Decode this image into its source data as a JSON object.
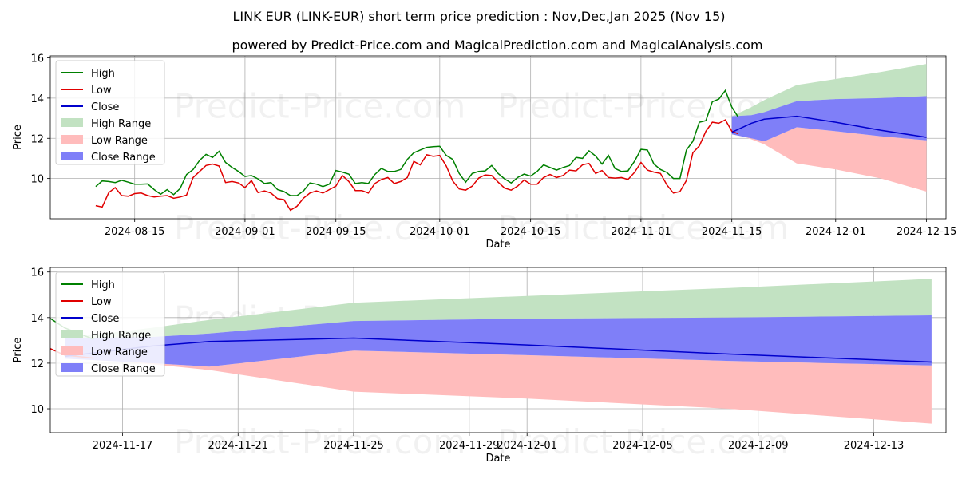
{
  "chart_data": {
    "type": "line",
    "title": "LINK EUR (LINK-EUR) short term price prediction : Nov,Dec,Jan 2025 (Nov 15)",
    "subtitle": "powered by Predict-Price.com and MagicalPrediction.com and MagicalAnalysis.com",
    "watermark": "Predict-Price.com",
    "colors": {
      "high": "#008000",
      "low": "#e00000",
      "close": "#0000cc",
      "high_range": "#c2e2c2",
      "low_range": "#ffbcbc",
      "close_range": "#7f7ff8",
      "grid": "#b0b0b0"
    },
    "legend": [
      "High",
      "Low",
      "Close",
      "High Range",
      "Low Range",
      "Close Range"
    ],
    "history": {
      "start_date": "2024-08-09",
      "high": [
        9.6,
        9.88,
        9.85,
        9.8,
        9.91,
        9.82,
        9.72,
        9.72,
        9.73,
        9.45,
        9.22,
        9.45,
        9.2,
        9.5,
        10.2,
        10.45,
        10.9,
        11.2,
        11.05,
        11.35,
        10.8,
        10.55,
        10.35,
        10.1,
        10.15,
        9.98,
        9.75,
        9.8,
        9.45,
        9.35,
        9.15,
        9.15,
        9.38,
        9.78,
        9.72,
        9.6,
        9.72,
        10.4,
        10.32,
        10.22,
        9.75,
        9.8,
        9.75,
        10.2,
        10.5,
        10.35,
        10.35,
        10.45,
        10.95,
        11.28,
        11.42,
        11.55,
        11.58,
        11.6,
        11.15,
        10.95,
        10.25,
        9.82,
        10.25,
        10.35,
        10.38,
        10.65,
        10.25,
        9.98,
        9.78,
        10.05,
        10.22,
        10.12,
        10.35,
        10.68,
        10.55,
        10.42,
        10.55,
        10.65,
        11.05,
        11.0,
        11.38,
        11.12,
        10.72,
        11.15,
        10.5,
        10.35,
        10.38,
        10.85,
        11.45,
        11.42,
        10.72,
        10.45,
        10.3,
        10.0,
        10.0,
        11.42,
        11.85,
        12.8,
        12.88,
        13.82,
        13.95,
        14.38,
        13.55,
        13.05
      ],
      "low": [
        8.65,
        8.58,
        9.3,
        9.55,
        9.15,
        9.12,
        9.25,
        9.28,
        9.15,
        9.08,
        9.12,
        9.15,
        9.02,
        9.08,
        9.18,
        10.05,
        10.35,
        10.65,
        10.72,
        10.62,
        9.8,
        9.85,
        9.78,
        9.55,
        9.9,
        9.3,
        9.38,
        9.28,
        9.0,
        8.95,
        8.42,
        8.62,
        9.02,
        9.28,
        9.38,
        9.28,
        9.45,
        9.62,
        10.15,
        9.85,
        9.4,
        9.4,
        9.28,
        9.75,
        9.95,
        10.05,
        9.75,
        9.85,
        10.05,
        10.85,
        10.68,
        11.18,
        11.1,
        11.15,
        10.62,
        9.88,
        9.48,
        9.42,
        9.62,
        10.02,
        10.18,
        10.15,
        9.82,
        9.52,
        9.42,
        9.62,
        9.92,
        9.72,
        9.72,
        10.05,
        10.2,
        10.05,
        10.15,
        10.42,
        10.38,
        10.68,
        10.75,
        10.25,
        10.4,
        10.05,
        10.02,
        10.05,
        9.95,
        10.3,
        10.8,
        10.42,
        10.32,
        10.25,
        9.68,
        9.28,
        9.35,
        9.9,
        11.28,
        11.62,
        12.35,
        12.8,
        12.75,
        12.92,
        12.35,
        12.22
      ]
    },
    "forecast": {
      "dates": [
        "2024-11-15",
        "2024-11-18",
        "2024-11-20",
        "2024-11-25",
        "2024-12-01",
        "2024-12-08",
        "2024-12-15"
      ],
      "close": [
        12.3,
        12.75,
        12.95,
        13.1,
        12.8,
        12.4,
        12.05
      ],
      "close_range_high": [
        13.1,
        13.15,
        13.3,
        13.85,
        13.95,
        14.0,
        14.1
      ],
      "close_range_low": [
        12.2,
        12.0,
        11.85,
        12.55,
        12.35,
        12.1,
        11.9
      ],
      "high_range_top": [
        13.1,
        13.55,
        13.9,
        14.65,
        14.95,
        15.3,
        15.7
      ],
      "low_range_bottom": [
        12.3,
        11.95,
        11.7,
        10.75,
        10.45,
        10.0,
        9.35
      ]
    },
    "top_axis": {
      "xlabel": "Date",
      "ylabel": "Price",
      "xlim": [
        "2024-08-02",
        "2024-12-18"
      ],
      "ylim": [
        8.0,
        16.1
      ],
      "xticks": [
        "2024-08-15",
        "2024-09-01",
        "2024-09-15",
        "2024-10-01",
        "2024-10-15",
        "2024-11-01",
        "2024-11-15",
        "2024-12-01",
        "2024-12-15"
      ],
      "yticks": [
        10,
        12,
        14,
        16
      ]
    },
    "bottom_axis": {
      "xlabel": "Date",
      "ylabel": "Price",
      "xlim": [
        "2024-11-14.5",
        "2024-12-15.5"
      ],
      "ylim": [
        8.95,
        16.2
      ],
      "xticks": [
        "2024-11-17",
        "2024-11-21",
        "2024-11-25",
        "2024-11-29",
        "2024-12-01",
        "2024-12-05",
        "2024-12-09",
        "2024-12-13"
      ],
      "yticks": [
        10,
        12,
        14,
        16
      ]
    }
  }
}
